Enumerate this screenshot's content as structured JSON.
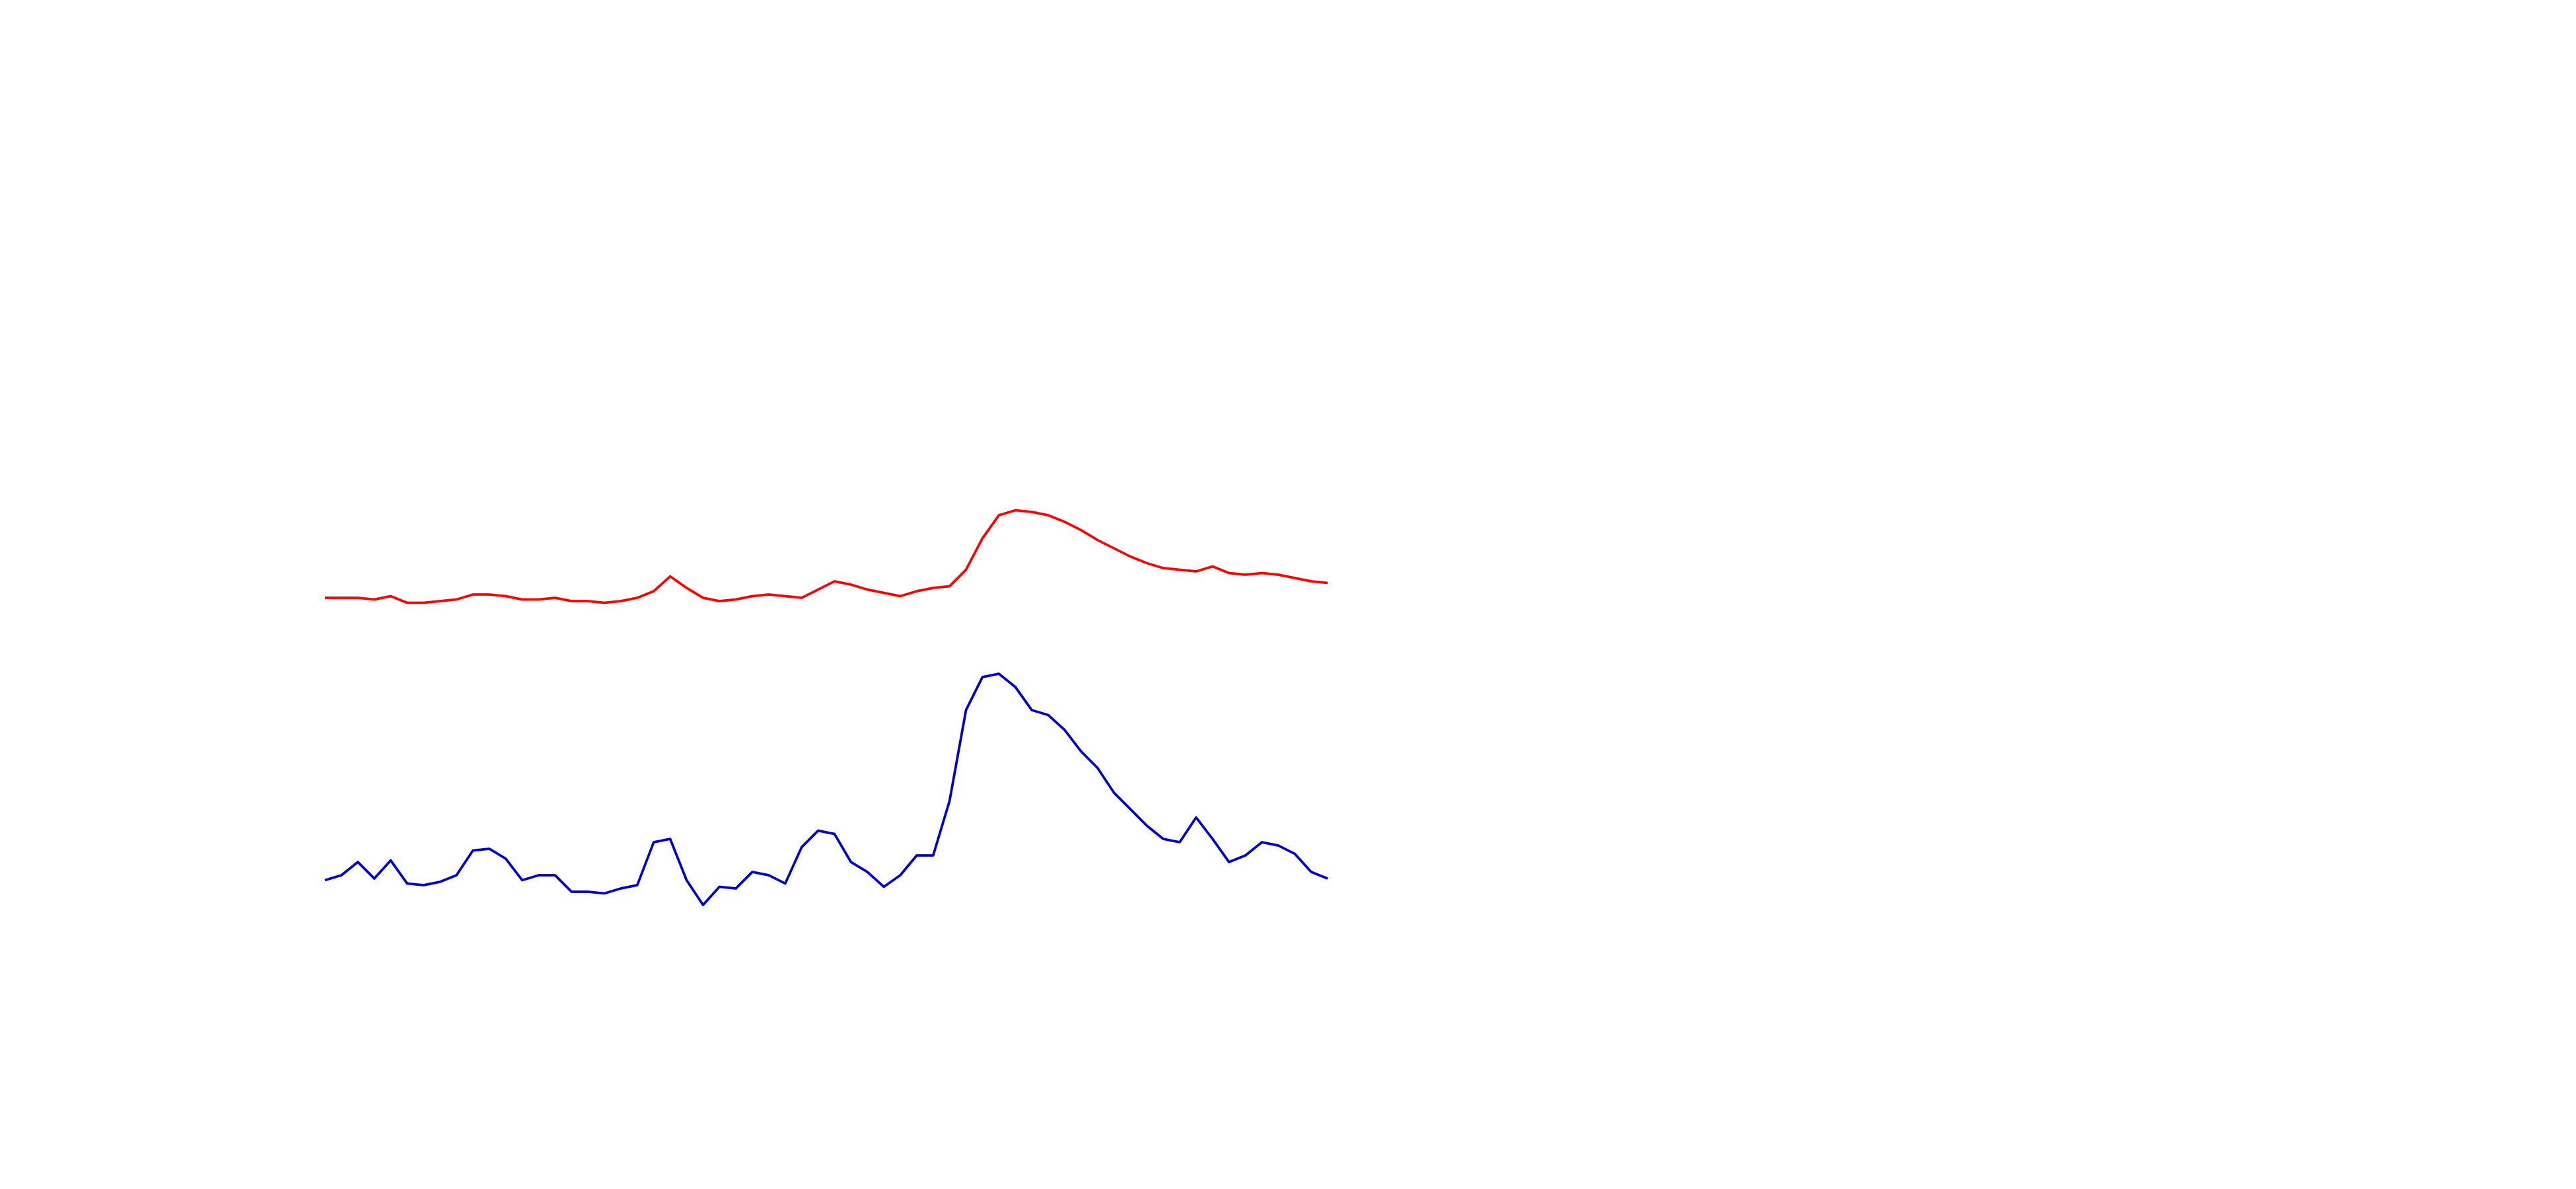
{
  "chart_data": {
    "type": "line",
    "ylim": [
      0,
      720
    ],
    "series": [
      {
        "color": "#ff0000",
        "values": [
          358,
          358,
          358,
          357,
          359,
          355,
          355,
          356,
          357,
          360,
          360,
          359,
          357,
          357,
          358,
          356,
          356,
          355,
          356,
          358,
          362,
          371,
          364,
          358,
          356,
          357,
          359,
          360,
          359,
          358,
          363,
          368,
          366,
          363,
          361,
          359,
          362,
          364,
          365,
          375,
          394,
          408,
          411,
          410,
          408,
          404,
          399,
          393,
          388,
          383,
          379,
          376,
          375,
          374,
          377,
          373,
          372,
          373,
          372,
          370,
          368,
          367
        ]
      },
      {
        "color": "#0000cc",
        "values": [
          187,
          190,
          198,
          188,
          199,
          185,
          184,
          186,
          190,
          205,
          206,
          200,
          187,
          190,
          190,
          180,
          180,
          179,
          182,
          184,
          210,
          212,
          187,
          172,
          183,
          182,
          192,
          190,
          185,
          207,
          217,
          215,
          198,
          192,
          183,
          190,
          202,
          202,
          235,
          290,
          310,
          312,
          304,
          290,
          287,
          278,
          265,
          255,
          240,
          230,
          220,
          212,
          210,
          225,
          212,
          198,
          202,
          210,
          208,
          203,
          192,
          188
        ]
      }
    ]
  }
}
